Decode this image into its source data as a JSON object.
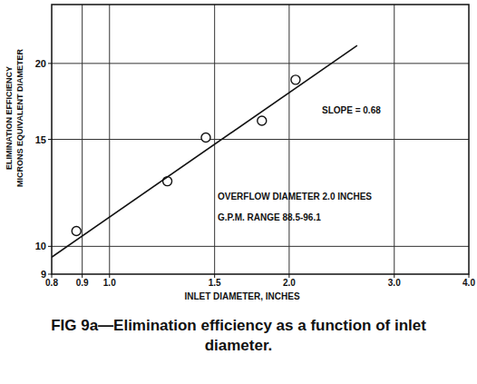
{
  "chart_data": {
    "type": "scatter",
    "title": "FIG 9a—Elimination efficiency as a function of inlet diameter.",
    "x_label": "INLET DIAMETER, INCHES",
    "y_label": [
      "ELIMINATION EFFICIENCY",
      "MICRONS EQUIVALENT DIAMETER"
    ],
    "annotations": [
      "SLOPE = 0.68",
      "OVERFLOW DIAMETER 2.0 INCHES",
      "G.P.M. RANGE 88.5-96.1"
    ],
    "log": true,
    "grid": true,
    "xlim": [
      0.8,
      4.0
    ],
    "xticks": [
      0.8,
      0.9,
      {
        "value": 1,
        "label": "1.0"
      },
      1.5,
      {
        "value": 2,
        "label": "2.0"
      },
      {
        "value": 3,
        "label": "3.0"
      },
      {
        "value": 4,
        "label": "4.0"
      }
    ],
    "ylim": [
      9,
      25
    ],
    "yticks": [
      9,
      10,
      15,
      20
    ],
    "series": [
      {
        "type": "scatter",
        "marker": "circle",
        "color": "#111111",
        "x": [
          0.88,
          1.25,
          1.45,
          1.8,
          2.05
        ],
        "values": [
          10.6,
          12.8,
          15.1,
          16.1,
          18.8
        ]
      },
      {
        "type": "line",
        "line_style": "solid",
        "color": "#111111",
        "x": [
          0.8,
          2.6
        ],
        "values": [
          9.6,
          21.4
        ]
      }
    ]
  }
}
